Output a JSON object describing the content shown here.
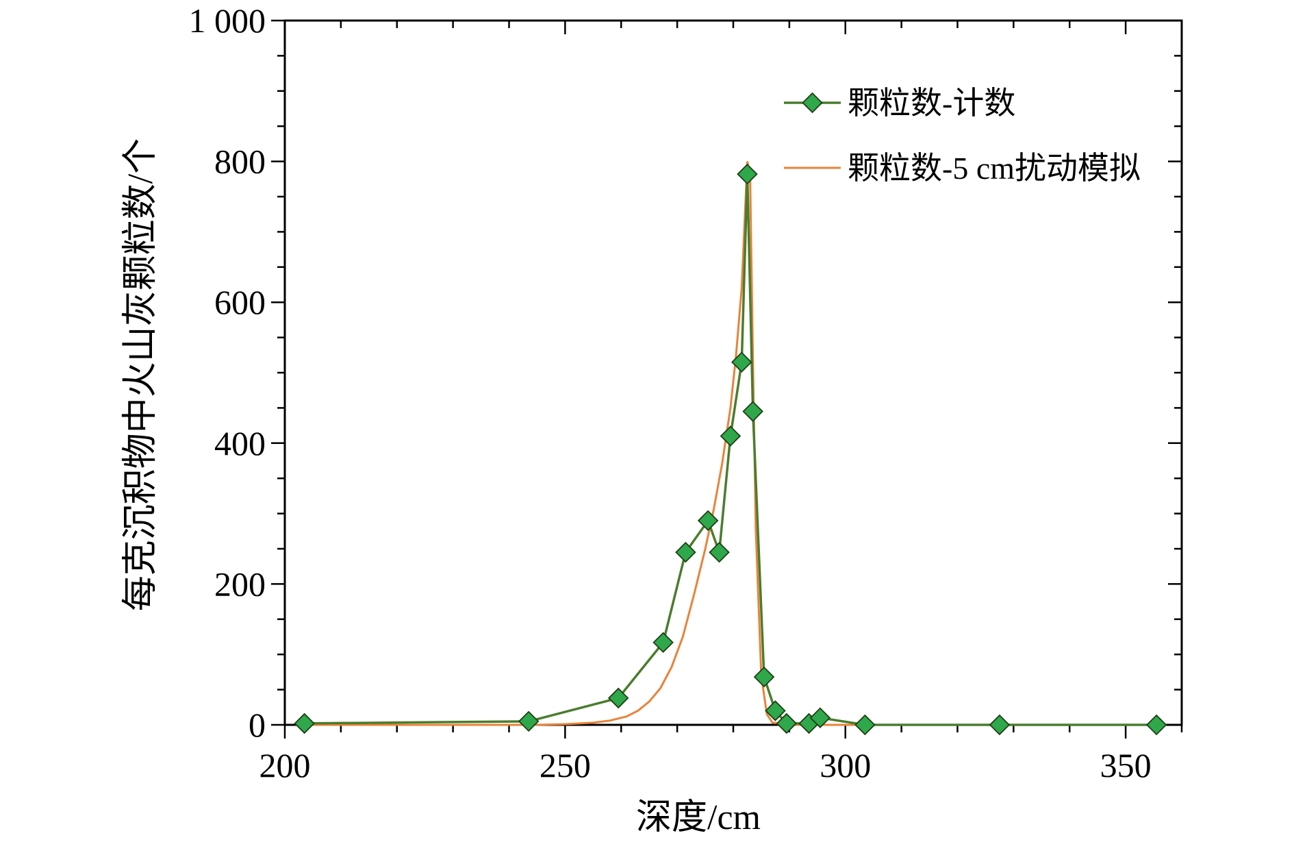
{
  "chart_data": {
    "type": "line",
    "xlabel": "深度/cm",
    "ylabel": "每克沉积物中火山灰颗粒数/个",
    "xlim": [
      200,
      360
    ],
    "ylim": [
      0,
      1000
    ],
    "x_ticks": [
      200,
      250,
      300,
      350
    ],
    "x_tick_labels": [
      "200",
      "250",
      "300",
      "350"
    ],
    "y_ticks": [
      0,
      200,
      400,
      600,
      800,
      1000
    ],
    "y_tick_labels": [
      "0",
      "200",
      "400",
      "600",
      "800",
      "1 000"
    ],
    "grid": false,
    "legend_position": "top-right",
    "series": [
      {
        "name": "颗粒数-计数",
        "color": "#4a7d2e",
        "marker": "diamond",
        "marker_color": "#2ea84a",
        "points": [
          [
            203.5,
            2
          ],
          [
            243.5,
            5
          ],
          [
            259.5,
            38
          ],
          [
            267.5,
            117
          ],
          [
            271.5,
            245
          ],
          [
            275.5,
            290
          ],
          [
            277.5,
            245
          ],
          [
            279.5,
            410
          ],
          [
            281.5,
            515
          ],
          [
            282.5,
            782
          ],
          [
            283.5,
            445
          ],
          [
            285.5,
            68
          ],
          [
            287.5,
            20
          ],
          [
            289.5,
            2
          ],
          [
            293.5,
            2
          ],
          [
            295.5,
            10
          ],
          [
            303.5,
            0
          ],
          [
            327.5,
            0
          ],
          [
            355.5,
            0
          ]
        ]
      },
      {
        "name": "颗粒数-5 cm扰动模拟",
        "color": "#e8833a",
        "marker": "none",
        "points": [
          [
            203.5,
            0
          ],
          [
            245,
            0
          ],
          [
            250,
            1
          ],
          [
            255,
            3
          ],
          [
            258,
            6
          ],
          [
            261,
            12
          ],
          [
            263,
            20
          ],
          [
            265,
            33
          ],
          [
            267,
            52
          ],
          [
            269,
            82
          ],
          [
            271,
            125
          ],
          [
            273,
            185
          ],
          [
            275,
            250
          ],
          [
            276.5,
            305
          ],
          [
            278,
            370
          ],
          [
            279.5,
            450
          ],
          [
            280.5,
            525
          ],
          [
            281.5,
            620
          ],
          [
            282.5,
            800
          ],
          [
            283,
            780
          ],
          [
            283.5,
            520
          ],
          [
            284,
            280
          ],
          [
            285,
            70
          ],
          [
            286,
            15
          ],
          [
            287,
            3
          ],
          [
            290,
            0
          ],
          [
            355.5,
            0
          ]
        ]
      }
    ]
  }
}
